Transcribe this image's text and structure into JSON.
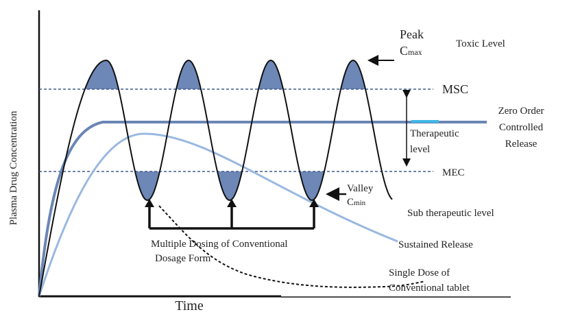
{
  "y_axis_label": "Plasma Drug Concentration",
  "x_axis_label": "Time",
  "toxic_level": "Toxic Level",
  "peak": {
    "label": "Peak",
    "symbol": "C",
    "subscript": "max"
  },
  "msc": "MSC",
  "mec": "MEC",
  "zero_order": [
    "Zero Order",
    "Controlled",
    "Release"
  ],
  "therapeutic": [
    "Therapeutic",
    "level"
  ],
  "valley": {
    "label": "Valley",
    "symbol": "C",
    "subscript": "min"
  },
  "sub_therapeutic": "Sub therapeutic level",
  "multiple_dosing": [
    "Multiple Dosing of Conventional",
    "Dosage Form"
  ],
  "sustained_release": "Sustained Release",
  "single_dose": [
    "Single Dose of",
    "Conventional tablet"
  ]
}
